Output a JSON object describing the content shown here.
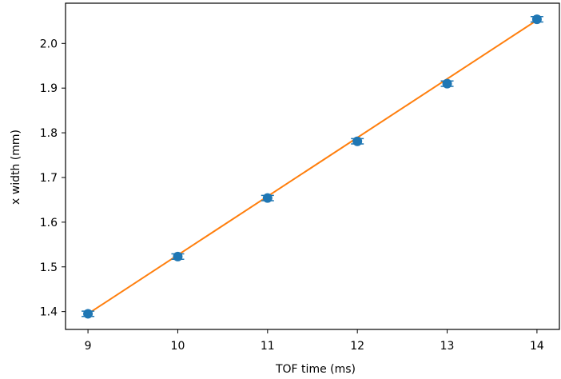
{
  "chart_data": {
    "type": "scatter",
    "title": "",
    "xlabel": "TOF time (ms)",
    "ylabel": "x width (mm)",
    "xlim": [
      8.75,
      14.25
    ],
    "ylim": [
      1.36,
      2.09
    ],
    "x_ticks": [
      9,
      10,
      11,
      12,
      13,
      14
    ],
    "x_tick_labels": [
      "9",
      "10",
      "11",
      "12",
      "13",
      "14"
    ],
    "y_ticks": [
      1.4,
      1.5,
      1.6,
      1.7,
      1.8,
      1.9,
      2.0
    ],
    "y_tick_labels": [
      "1.4",
      "1.5",
      "1.6",
      "1.7",
      "1.8",
      "1.9",
      "2.0"
    ],
    "grid": false,
    "series": [
      {
        "kind": "scatter-errorbar",
        "color": "#1f77b4",
        "x": [
          9,
          10,
          11,
          12,
          13,
          14
        ],
        "y": [
          1.395,
          1.523,
          1.654,
          1.781,
          1.91,
          2.054
        ],
        "yerr": [
          0.006,
          0.006,
          0.006,
          0.006,
          0.006,
          0.006
        ]
      },
      {
        "kind": "line",
        "color": "#ff7f0e",
        "x": [
          9,
          14
        ],
        "y": [
          1.395,
          2.052
        ]
      }
    ]
  }
}
